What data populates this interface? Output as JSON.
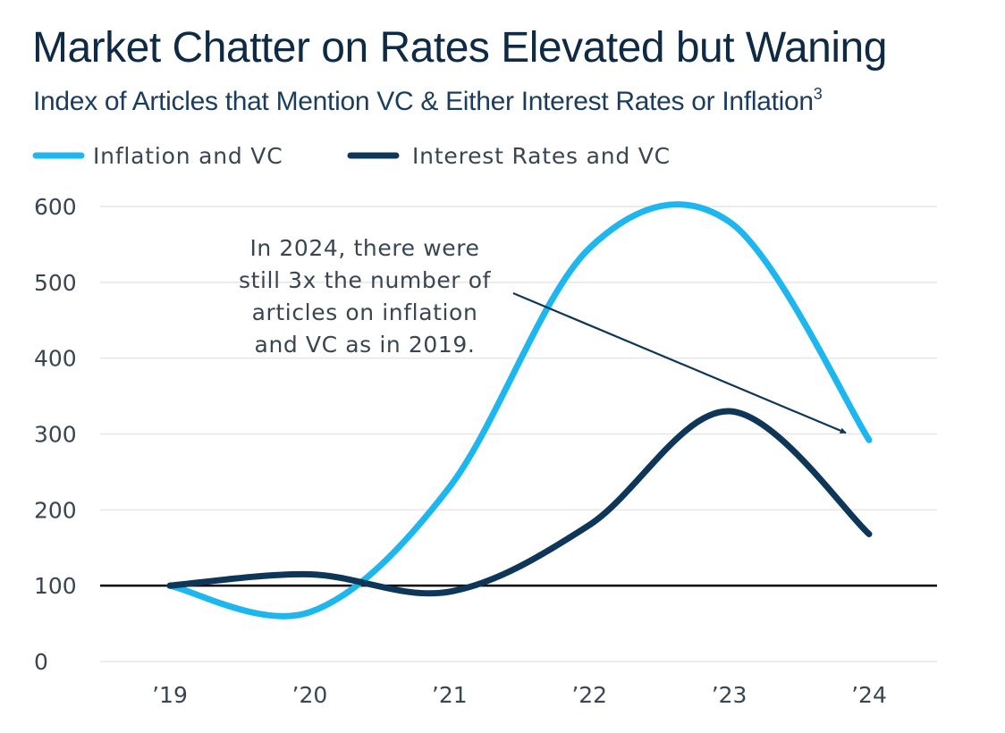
{
  "title": "Market Chatter on Rates Elevated but Waning",
  "subtitle": "Index of Articles that Mention VC & Either Interest Rates or Inflation",
  "subtitle_footnote": "3",
  "colors": {
    "inflation": "#1eb6ef",
    "interest": "#0e3659",
    "text": "#3a4552",
    "grid": "#e6e6e6",
    "baseline": "#000000",
    "title": "#0e2a44"
  },
  "chart_data": {
    "type": "line",
    "title": "Market Chatter on Rates Elevated but Waning",
    "subtitle": "Index of Articles that Mention VC & Either Interest Rates or Inflation",
    "categories": [
      "’19",
      "’20",
      "’21",
      "’22",
      "’23",
      "’24"
    ],
    "series": [
      {
        "name": "Inflation and VC",
        "color": "#1eb6ef",
        "values": [
          100,
          65,
          230,
          545,
          580,
          292
        ]
      },
      {
        "name": "Interest Rates and VC",
        "color": "#0e3659",
        "values": [
          100,
          115,
          92,
          180,
          330,
          168
        ]
      }
    ],
    "ylim": [
      0,
      600
    ],
    "yticks": [
      0,
      100,
      200,
      300,
      400,
      500,
      600
    ],
    "ytick_labels": [
      "0",
      "100",
      "200",
      "300",
      "400",
      "500",
      "600"
    ],
    "reference_line": 100,
    "grid": true,
    "legend_position": "top-left",
    "annotation": {
      "lines": [
        "In 2024, there were",
        "still 3x the number of",
        "articles on inflation",
        "and VC as in 2019."
      ],
      "arrow_target": {
        "x": "’24",
        "y": 292
      }
    }
  }
}
